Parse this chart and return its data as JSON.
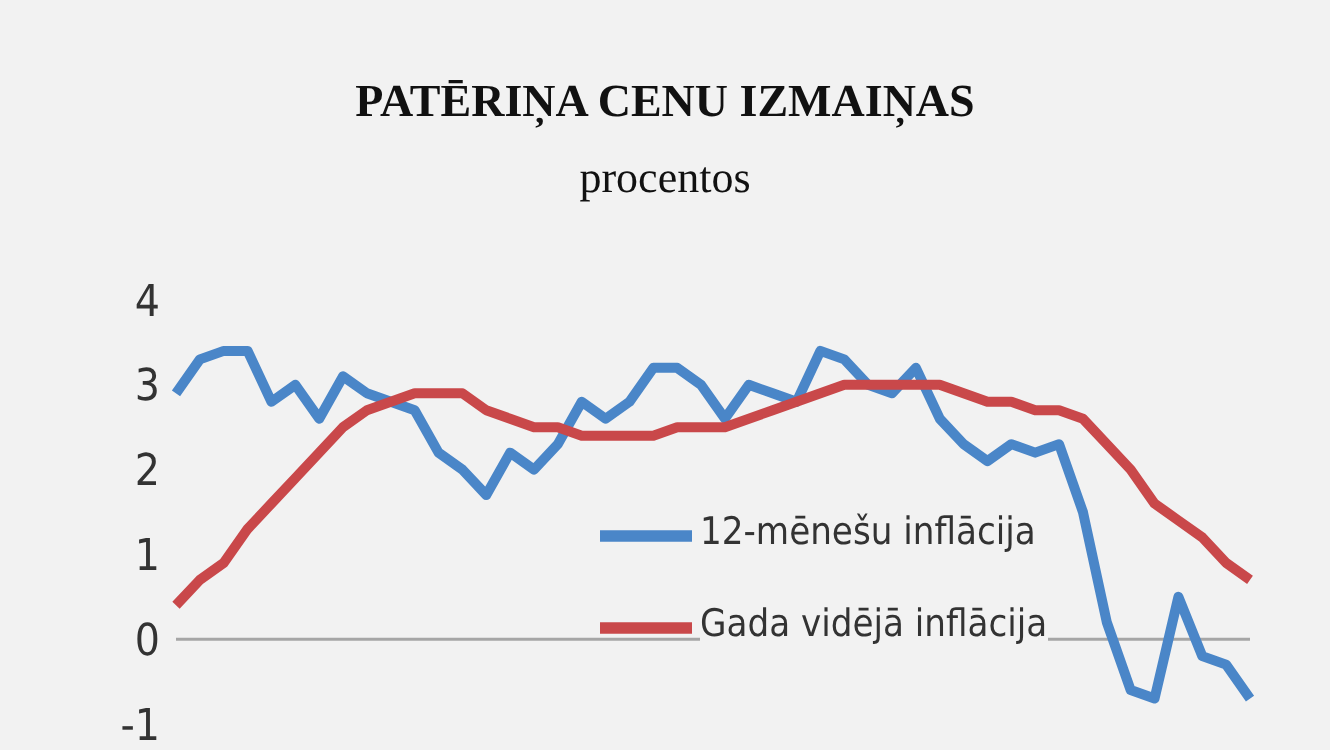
{
  "chart_data": {
    "type": "line",
    "title": "PATĒRIŅA CENU IZMAIŅAS",
    "subtitle": "procentos",
    "categories": [
      null,
      null,
      null,
      null,
      null,
      null,
      null,
      null,
      null,
      null,
      null,
      null,
      null,
      null,
      null,
      null,
      null,
      null,
      null,
      null,
      null,
      null,
      null,
      null,
      null,
      null,
      null,
      null,
      null,
      null,
      null,
      null,
      null,
      null,
      null,
      null,
      null,
      null,
      null,
      null,
      null,
      null,
      null,
      null,
      null,
      null
    ],
    "series": [
      {
        "name": "12-mēnešu inflācija",
        "color": "#4a86c8",
        "values": [
          2.9,
          3.3,
          3.4,
          3.4,
          2.8,
          3.0,
          2.6,
          3.1,
          2.9,
          2.8,
          2.7,
          2.2,
          2.0,
          1.7,
          2.2,
          2.0,
          2.3,
          2.8,
          2.6,
          2.8,
          3.2,
          3.2,
          3.0,
          2.6,
          3.0,
          2.9,
          2.8,
          3.4,
          3.3,
          3.0,
          2.9,
          3.2,
          2.6,
          2.3,
          2.1,
          2.3,
          2.2,
          2.3,
          1.5,
          0.2,
          -0.6,
          -0.7,
          0.5,
          -0.2,
          -0.3,
          -0.7
        ]
      },
      {
        "name": "Gada vidējā inflācija",
        "color": "#c9484a",
        "values": [
          0.4,
          0.7,
          0.9,
          1.3,
          1.6,
          1.9,
          2.2,
          2.5,
          2.7,
          2.8,
          2.9,
          2.9,
          2.9,
          2.7,
          2.6,
          2.5,
          2.5,
          2.4,
          2.4,
          2.4,
          2.4,
          2.5,
          2.5,
          2.5,
          2.6,
          2.7,
          2.8,
          2.9,
          3.0,
          3.0,
          3.0,
          3.0,
          3.0,
          2.9,
          2.8,
          2.8,
          2.7,
          2.7,
          2.6,
          2.3,
          2.0,
          1.6,
          1.4,
          1.2,
          0.9,
          0.7
        ]
      }
    ],
    "ylim": [
      -1,
      4
    ],
    "yticks": [
      -1,
      0,
      1,
      2,
      3,
      4
    ],
    "grid": false,
    "legend": "right",
    "ref_lines": [
      {
        "axis": "y",
        "value": 0,
        "color": "#a6a6a6"
      }
    ]
  }
}
